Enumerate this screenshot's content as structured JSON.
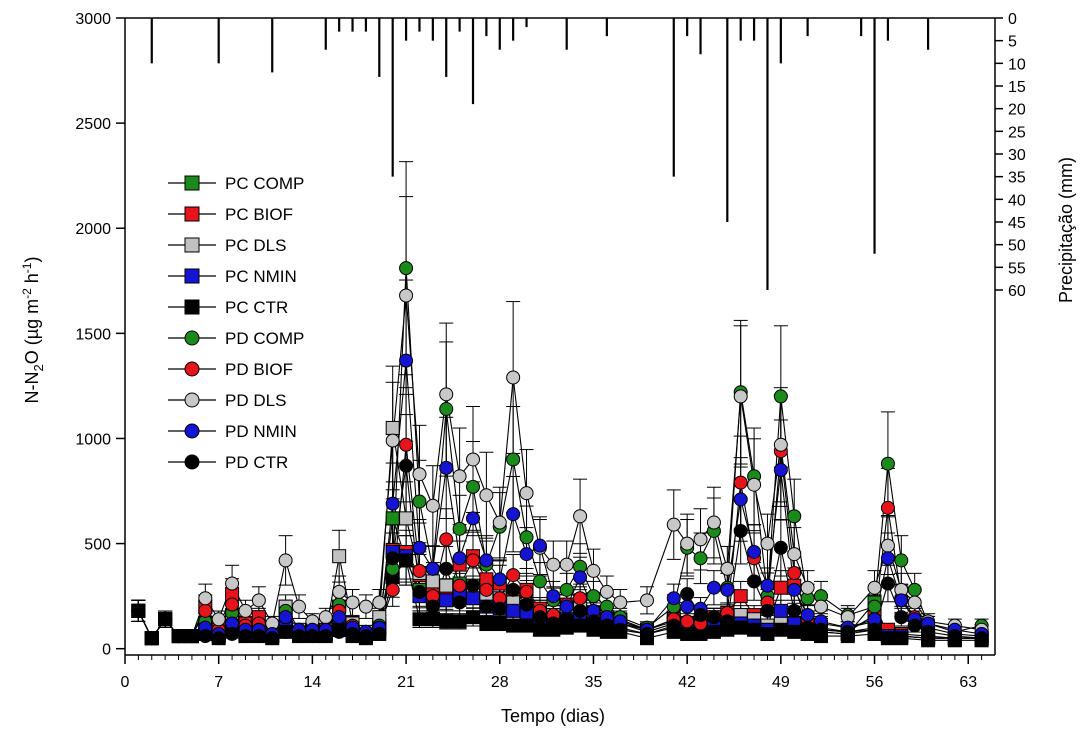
{
  "chart_data": {
    "type": "line",
    "xlabel": "Tempo (dias)",
    "ylabel": "N-N2O (µg m-2 h-1)",
    "ylabel_right": "Precipitação (mm)",
    "xlim": [
      0,
      65
    ],
    "ylim": [
      -30,
      3000
    ],
    "xticks": [
      0,
      7,
      14,
      21,
      28,
      35,
      42,
      49,
      56,
      63
    ],
    "yticks": [
      0,
      500,
      1000,
      1500,
      2000,
      2500,
      3000
    ],
    "y2_ticks": [
      0,
      5,
      10,
      15,
      20,
      25,
      30,
      35,
      40,
      45,
      50,
      55,
      60
    ],
    "grid": false,
    "legend_position": "left",
    "precipitation": {
      "x": [
        2,
        7,
        11,
        15,
        16,
        17,
        18,
        19,
        20,
        21,
        22,
        23,
        24,
        25,
        26,
        27,
        28,
        29,
        30,
        33,
        36,
        41,
        42,
        43,
        45,
        46,
        47,
        48,
        49,
        51,
        55,
        56,
        57,
        60
      ],
      "values": [
        10,
        10,
        12,
        7,
        3,
        3,
        3,
        13,
        35,
        5,
        3,
        5,
        13,
        3,
        19,
        4,
        7,
        5,
        2,
        7,
        4,
        35,
        4,
        8,
        45,
        5,
        5,
        60,
        10,
        4,
        4,
        52,
        5,
        7
      ]
    },
    "series": [
      {
        "name": "PC COMP",
        "marker": "square",
        "color": "#1a8a1a",
        "x": [
          1,
          2,
          3,
          4,
          5,
          6,
          7,
          8,
          9,
          10,
          11,
          12,
          13,
          14,
          15,
          16,
          17,
          18,
          19,
          20,
          21,
          22,
          23,
          24,
          25,
          26,
          27,
          28,
          29,
          30,
          31,
          32,
          33,
          34,
          35,
          36,
          37,
          39,
          41,
          42,
          43,
          44,
          45,
          46,
          47,
          48,
          49,
          50,
          51,
          52,
          54,
          56,
          57,
          58,
          60,
          62,
          64
        ],
        "values": [
          180,
          50,
          140,
          60,
          60,
          110,
          60,
          140,
          70,
          80,
          60,
          180,
          70,
          70,
          70,
          200,
          80,
          60,
          110,
          620,
          420,
          280,
          300,
          250,
          310,
          300,
          220,
          200,
          210,
          190,
          140,
          140,
          160,
          200,
          130,
          150,
          120,
          80,
          120,
          100,
          100,
          110,
          120,
          130,
          110,
          100,
          110,
          100,
          90,
          80,
          70,
          220,
          60,
          60,
          50,
          50,
          50
        ]
      },
      {
        "name": "PC BIOF",
        "marker": "square",
        "color": "#e8141c",
        "x": [
          1,
          2,
          3,
          4,
          5,
          6,
          7,
          8,
          9,
          10,
          11,
          12,
          13,
          14,
          15,
          16,
          17,
          18,
          19,
          20,
          21,
          22,
          23,
          24,
          25,
          26,
          27,
          28,
          29,
          30,
          31,
          32,
          33,
          34,
          35,
          36,
          37,
          39,
          41,
          42,
          43,
          44,
          45,
          46,
          47,
          48,
          49,
          50,
          51,
          52,
          54,
          56,
          57,
          58,
          60,
          62,
          64
        ],
        "values": [
          180,
          50,
          140,
          60,
          60,
          200,
          100,
          260,
          120,
          150,
          80,
          150,
          80,
          90,
          90,
          200,
          100,
          70,
          100,
          470,
          460,
          350,
          290,
          260,
          400,
          440,
          330,
          310,
          260,
          280,
          190,
          160,
          210,
          230,
          170,
          140,
          140,
          90,
          140,
          120,
          110,
          150,
          170,
          250,
          160,
          110,
          290,
          300,
          110,
          100,
          80,
          160,
          90,
          70,
          60,
          50,
          50
        ]
      },
      {
        "name": "PC DLS",
        "marker": "square",
        "color": "#c0c0c0",
        "x": [
          1,
          2,
          3,
          4,
          5,
          6,
          7,
          8,
          9,
          10,
          11,
          12,
          13,
          14,
          15,
          16,
          17,
          18,
          19,
          20,
          21,
          22,
          23,
          24,
          25,
          26,
          27,
          28,
          29,
          30,
          31,
          32,
          33,
          34,
          35,
          36,
          37,
          39,
          41,
          42,
          43,
          44,
          45,
          46,
          47,
          48,
          49,
          50,
          51,
          52,
          54,
          56,
          57,
          58,
          60,
          62,
          64
        ],
        "values": [
          180,
          50,
          140,
          60,
          60,
          120,
          80,
          160,
          100,
          90,
          70,
          200,
          90,
          80,
          80,
          440,
          120,
          80,
          150,
          1050,
          620,
          360,
          320,
          300,
          280,
          270,
          250,
          240,
          220,
          200,
          170,
          160,
          180,
          190,
          150,
          140,
          120,
          90,
          130,
          110,
          100,
          130,
          150,
          160,
          140,
          110,
          120,
          110,
          100,
          90,
          80,
          100,
          60,
          60,
          50,
          50,
          50
        ]
      },
      {
        "name": "PC NMIN",
        "marker": "square",
        "color": "#1414d2",
        "x": [
          1,
          2,
          3,
          4,
          5,
          6,
          7,
          8,
          9,
          10,
          11,
          12,
          13,
          14,
          15,
          16,
          17,
          18,
          19,
          20,
          21,
          22,
          23,
          24,
          25,
          26,
          27,
          28,
          29,
          30,
          31,
          32,
          33,
          34,
          35,
          36,
          37,
          39,
          41,
          42,
          43,
          44,
          45,
          46,
          47,
          48,
          49,
          50,
          51,
          52,
          54,
          56,
          57,
          58,
          60,
          62,
          64
        ],
        "values": [
          180,
          50,
          140,
          60,
          60,
          90,
          60,
          110,
          80,
          80,
          60,
          120,
          70,
          70,
          70,
          120,
          80,
          60,
          90,
          460,
          440,
          250,
          240,
          230,
          250,
          240,
          200,
          190,
          180,
          170,
          130,
          120,
          140,
          150,
          120,
          110,
          100,
          70,
          100,
          90,
          90,
          100,
          110,
          120,
          110,
          90,
          180,
          120,
          90,
          80,
          70,
          90,
          60,
          60,
          50,
          50,
          50
        ]
      },
      {
        "name": "PC CTR",
        "marker": "square",
        "color": "#000000",
        "x": [
          1,
          2,
          3,
          4,
          5,
          6,
          7,
          8,
          9,
          10,
          11,
          12,
          13,
          14,
          15,
          16,
          17,
          18,
          19,
          20,
          21,
          22,
          23,
          24,
          25,
          26,
          27,
          28,
          29,
          30,
          31,
          32,
          33,
          34,
          35,
          36,
          37,
          39,
          41,
          42,
          43,
          44,
          45,
          46,
          47,
          48,
          49,
          50,
          51,
          52,
          54,
          56,
          57,
          58,
          60,
          62,
          64
        ],
        "values": [
          180,
          50,
          140,
          60,
          60,
          70,
          50,
          90,
          60,
          60,
          50,
          80,
          60,
          60,
          60,
          90,
          60,
          50,
          70,
          340,
          420,
          140,
          140,
          130,
          130,
          150,
          120,
          120,
          110,
          110,
          90,
          90,
          100,
          110,
          90,
          80,
          80,
          50,
          80,
          70,
          70,
          80,
          90,
          100,
          90,
          70,
          90,
          80,
          70,
          60,
          60,
          70,
          50,
          50,
          40,
          40,
          40
        ]
      },
      {
        "name": "PD COMP",
        "marker": "circle",
        "color": "#1a8a1a",
        "x": [
          1,
          2,
          3,
          4,
          5,
          6,
          7,
          8,
          9,
          10,
          11,
          12,
          13,
          14,
          15,
          16,
          17,
          18,
          19,
          20,
          21,
          22,
          23,
          24,
          25,
          26,
          27,
          28,
          29,
          30,
          31,
          32,
          33,
          34,
          35,
          36,
          37,
          39,
          41,
          42,
          43,
          44,
          45,
          46,
          47,
          48,
          49,
          50,
          51,
          52,
          54,
          56,
          57,
          58,
          59,
          60,
          62,
          64
        ],
        "values": [
          180,
          50,
          140,
          60,
          60,
          130,
          70,
          170,
          90,
          100,
          70,
          180,
          80,
          80,
          80,
          210,
          100,
          80,
          110,
          380,
          1810,
          700,
          380,
          1140,
          570,
          770,
          400,
          580,
          900,
          530,
          320,
          230,
          280,
          390,
          250,
          200,
          150,
          100,
          200,
          480,
          430,
          560,
          290,
          1220,
          820,
          250,
          1200,
          630,
          240,
          250,
          160,
          200,
          880,
          420,
          280,
          120,
          80,
          110
        ]
      },
      {
        "name": "PD BIOF",
        "marker": "circle",
        "color": "#e8141c",
        "x": [
          1,
          2,
          3,
          4,
          5,
          6,
          7,
          8,
          9,
          10,
          11,
          12,
          13,
          14,
          15,
          16,
          17,
          18,
          19,
          20,
          21,
          22,
          23,
          24,
          25,
          26,
          27,
          28,
          29,
          30,
          31,
          32,
          33,
          34,
          35,
          36,
          37,
          39,
          41,
          42,
          43,
          44,
          45,
          46,
          47,
          48,
          49,
          50,
          51,
          52,
          54,
          56,
          57,
          58,
          59,
          60,
          62,
          64
        ],
        "values": [
          180,
          50,
          140,
          60,
          60,
          180,
          90,
          210,
          110,
          120,
          80,
          150,
          90,
          90,
          90,
          180,
          110,
          80,
          100,
          280,
          970,
          370,
          250,
          520,
          300,
          420,
          280,
          240,
          350,
          270,
          180,
          160,
          210,
          240,
          160,
          150,
          130,
          90,
          140,
          130,
          120,
          150,
          170,
          790,
          430,
          220,
          940,
          360,
          140,
          120,
          100,
          130,
          670,
          240,
          150,
          100,
          70,
          60
        ]
      },
      {
        "name": "PD DLS",
        "marker": "circle",
        "color": "#c8c8c8",
        "x": [
          1,
          2,
          3,
          4,
          5,
          6,
          7,
          8,
          9,
          10,
          11,
          12,
          13,
          14,
          15,
          16,
          17,
          18,
          19,
          20,
          21,
          22,
          23,
          24,
          25,
          26,
          27,
          28,
          29,
          30,
          31,
          32,
          33,
          34,
          35,
          36,
          37,
          39,
          41,
          42,
          43,
          44,
          45,
          46,
          47,
          48,
          49,
          50,
          51,
          52,
          54,
          56,
          57,
          58,
          59,
          60,
          62,
          64
        ],
        "values": [
          180,
          50,
          140,
          60,
          60,
          240,
          140,
          310,
          180,
          230,
          120,
          420,
          200,
          130,
          150,
          270,
          220,
          200,
          220,
          990,
          1680,
          830,
          680,
          1210,
          820,
          900,
          730,
          600,
          1290,
          740,
          480,
          400,
          400,
          630,
          370,
          270,
          220,
          230,
          590,
          500,
          520,
          600,
          380,
          1200,
          780,
          500,
          970,
          450,
          290,
          200,
          150,
          290,
          490,
          280,
          220,
          130,
          110,
          90
        ]
      },
      {
        "name": "PD NMIN",
        "marker": "circle",
        "color": "#1414d2",
        "x": [
          1,
          2,
          3,
          4,
          5,
          6,
          7,
          8,
          9,
          10,
          11,
          12,
          13,
          14,
          15,
          16,
          17,
          18,
          19,
          20,
          21,
          22,
          23,
          24,
          25,
          26,
          27,
          28,
          29,
          30,
          31,
          32,
          33,
          34,
          35,
          36,
          37,
          39,
          41,
          42,
          43,
          44,
          45,
          46,
          47,
          48,
          49,
          50,
          51,
          52,
          54,
          56,
          57,
          58,
          59,
          60,
          62,
          64
        ],
        "values": [
          180,
          50,
          140,
          60,
          60,
          100,
          70,
          120,
          90,
          90,
          70,
          150,
          90,
          90,
          90,
          150,
          100,
          80,
          100,
          690,
          1370,
          480,
          380,
          860,
          430,
          620,
          420,
          330,
          640,
          450,
          490,
          250,
          200,
          340,
          180,
          150,
          130,
          90,
          240,
          200,
          190,
          290,
          280,
          710,
          460,
          300,
          850,
          280,
          160,
          130,
          100,
          140,
          430,
          230,
          140,
          120,
          90,
          70
        ]
      },
      {
        "name": "PD CTR",
        "marker": "circle",
        "color": "#000000",
        "x": [
          1,
          2,
          3,
          4,
          5,
          6,
          7,
          8,
          9,
          10,
          11,
          12,
          13,
          14,
          15,
          16,
          17,
          18,
          19,
          20,
          21,
          22,
          23,
          24,
          25,
          26,
          27,
          28,
          29,
          30,
          31,
          32,
          33,
          34,
          35,
          36,
          37,
          39,
          41,
          42,
          43,
          44,
          45,
          46,
          47,
          48,
          49,
          50,
          51,
          52,
          54,
          56,
          57,
          58,
          59,
          60,
          62,
          64
        ],
        "values": [
          180,
          50,
          140,
          60,
          60,
          60,
          50,
          70,
          60,
          60,
          50,
          80,
          60,
          60,
          60,
          80,
          70,
          60,
          70,
          430,
          870,
          270,
          200,
          380,
          220,
          300,
          200,
          190,
          280,
          210,
          150,
          120,
          140,
          180,
          130,
          110,
          90,
          70,
          110,
          260,
          160,
          150,
          130,
          560,
          320,
          180,
          480,
          180,
          100,
          90,
          80,
          90,
          310,
          150,
          110,
          80,
          60,
          50
        ]
      }
    ]
  }
}
